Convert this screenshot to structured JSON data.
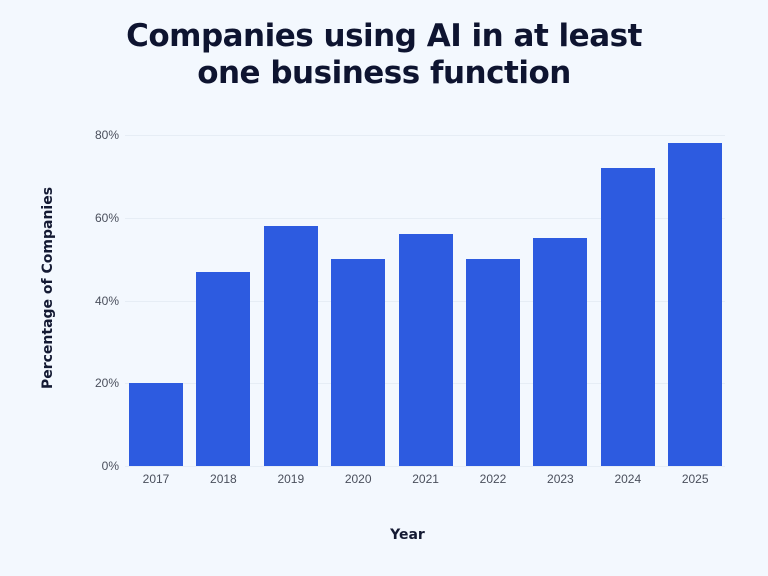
{
  "chart_data": {
    "type": "bar",
    "title": "Companies using AI in at least one business function",
    "title_lines": [
      "Companies using AI in at least",
      "one business function"
    ],
    "xlabel": "Year",
    "ylabel": "Percentage of Companies",
    "categories": [
      "2017",
      "2018",
      "2019",
      "2020",
      "2021",
      "2022",
      "2023",
      "2024",
      "2025"
    ],
    "values": [
      20,
      47,
      58,
      50,
      56,
      50,
      55,
      72,
      78
    ],
    "ylim": [
      0,
      80
    ],
    "yticks": [
      "0%",
      "20%",
      "40%",
      "60%",
      "80%"
    ],
    "grid": true,
    "legend": null,
    "bar_color": "#2d5be0"
  }
}
